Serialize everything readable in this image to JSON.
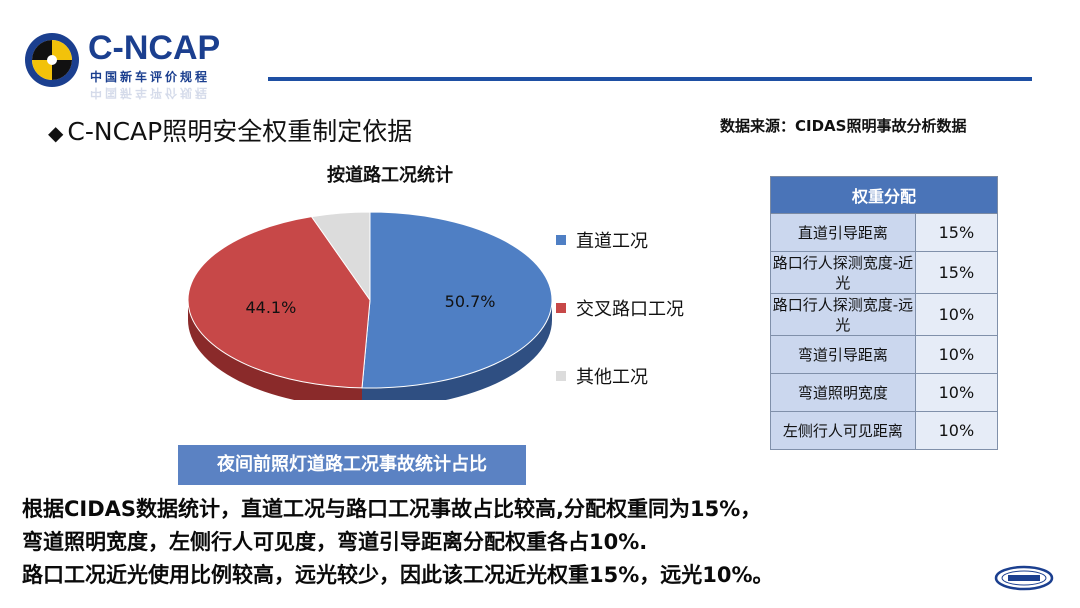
{
  "header": {
    "brand_name": "C-NCAP",
    "brand_sub": "中国新车评价规程",
    "page_title": "C-NCAP照明安全权重制定依据",
    "bullet": "◆",
    "data_source": "数据来源：CIDAS照明事故分析数据"
  },
  "colors": {
    "brand_blue": "#1b3f8f",
    "rule_blue": "#1e4fa3",
    "straight": "#4f7fc4",
    "intersection": "#c74848",
    "other": "#dcdcdc",
    "table_header": "#4a74b8",
    "caption_bg": "#5b82c3"
  },
  "chart_data": {
    "type": "pie",
    "title": "按道路工况统计",
    "categories": [
      "直道工况",
      "交叉路口工况",
      "其他工况"
    ],
    "values": [
      50.7,
      44.1,
      5.2
    ],
    "data_labels": [
      "50.7%",
      "44.1%",
      ""
    ],
    "legend_position": "right",
    "caption": "夜间前照灯道路工况事故统计占比"
  },
  "weights": {
    "header": "权重分配",
    "rows": [
      {
        "name": "直道引导距离",
        "value": "15%"
      },
      {
        "name": "路口行人探测宽度-近光",
        "value": "15%"
      },
      {
        "name": "路口行人探测宽度-远光",
        "value": "10%"
      },
      {
        "name": "弯道引导距离",
        "value": "10%"
      },
      {
        "name": "弯道照明宽度",
        "value": "10%"
      },
      {
        "name": "左侧行人可见距离",
        "value": "10%"
      }
    ]
  },
  "summary": {
    "line1": "根据CIDAS数据统计，直道工况与路口工况事故占比较高,分配权重同为15%，",
    "line2": "弯道照明宽度，左侧行人可见度，弯道引导距离分配权重各占10%.",
    "line3": "路口工况近光使用比例较高，远光较少，因此该工况近光权重15%，远光10%。"
  },
  "footer": {
    "catarc_logo": "CATARC"
  }
}
